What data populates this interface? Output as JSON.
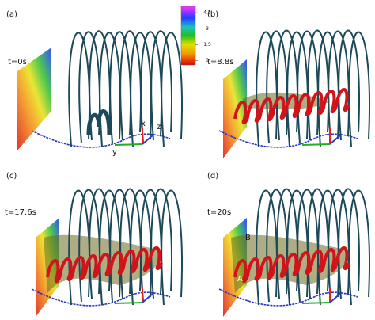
{
  "panels": [
    {
      "label": "(a)",
      "time": "t=0s"
    },
    {
      "label": "(b)",
      "time": "t=8.8s"
    },
    {
      "label": "(c)",
      "time": "t=17.6s"
    },
    {
      "label": "(d)",
      "time": "t=20s"
    }
  ],
  "colorbar": {
    "ticks": [
      4.5,
      3,
      1.5,
      0
    ],
    "range": [
      -0.4,
      5.1
    ]
  },
  "axes_labels": {
    "x": "x",
    "z": "z",
    "y": "y"
  },
  "markers": {
    "B": "B",
    "A": "A"
  }
}
